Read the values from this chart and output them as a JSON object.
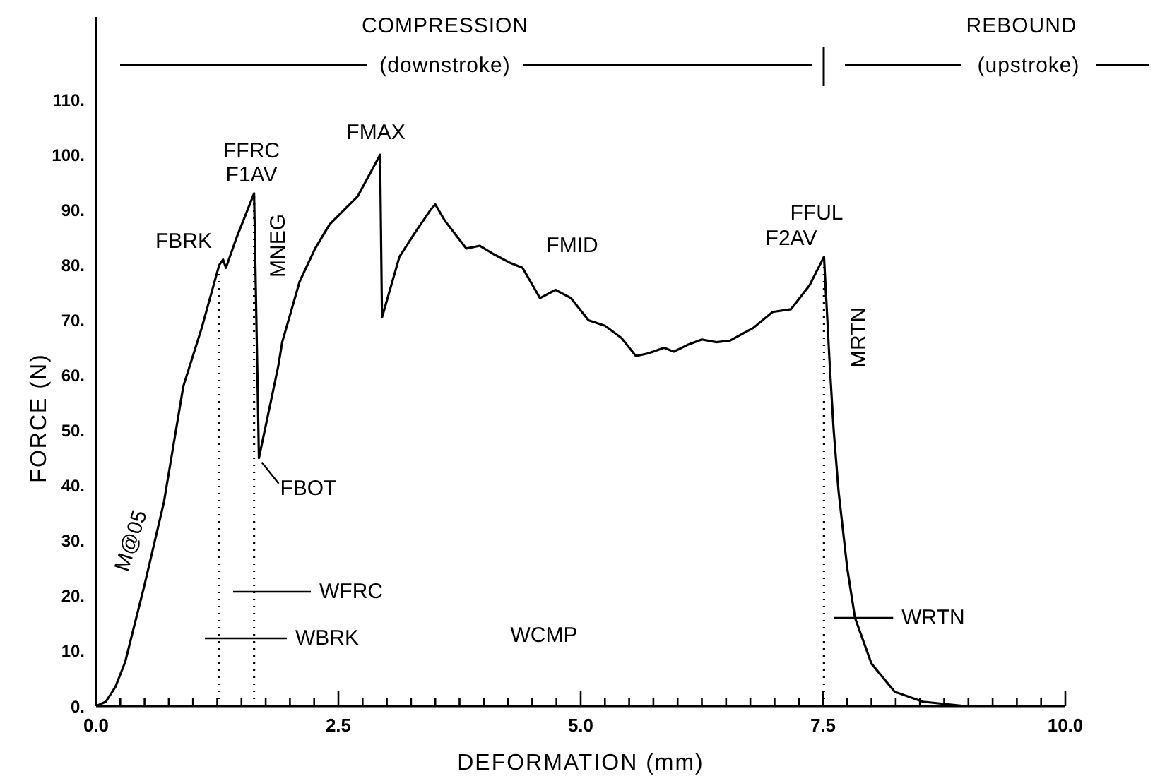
{
  "chart_data": {
    "type": "line",
    "xlabel": "DEFORMATION (mm)",
    "ylabel": "FORCE (N)",
    "x": [
      0,
      0.1,
      0.2,
      0.3,
      0.5,
      0.7,
      0.9,
      1.09,
      1.27,
      1.31,
      1.34,
      1.45,
      1.63,
      1.68,
      1.88,
      1.92,
      2.1,
      2.26,
      2.41,
      2.7,
      2.9,
      2.93,
      2.95,
      3.13,
      3.28,
      3.45,
      3.5,
      3.6,
      3.82,
      3.96,
      4.1,
      4.26,
      4.4,
      4.58,
      4.74,
      4.9,
      5.08,
      5.25,
      5.42,
      5.57,
      5.7,
      5.86,
      5.96,
      6.1,
      6.25,
      6.4,
      6.54,
      6.78,
      6.98,
      7.17,
      7.36,
      7.51,
      7.57,
      7.61,
      7.66,
      7.75,
      7.83,
      8.0,
      8.24,
      8.53,
      8.97,
      9.3
    ],
    "values": [
      0,
      0.8,
      3.5,
      8,
      22,
      37,
      58,
      68.6,
      80,
      81,
      79.5,
      85,
      93,
      45,
      61.7,
      66,
      77,
      83,
      87.4,
      92.5,
      99,
      100,
      70.5,
      81.5,
      85.6,
      90,
      91,
      88,
      83,
      83.5,
      82,
      80.5,
      79.5,
      74,
      75.5,
      74,
      70,
      69,
      66.8,
      63.5,
      64,
      65,
      64.3,
      65.5,
      66.5,
      66,
      66.3,
      68.6,
      71.5,
      72,
      76.3,
      81.5,
      61.7,
      50,
      39,
      25,
      16,
      7.7,
      2.6,
      0.8,
      0,
      0
    ],
    "color": "#000000",
    "marker": "none",
    "line_style": "solid",
    "grid": false,
    "xlim": [
      0,
      10
    ],
    "xticks": [
      {
        "value": 0,
        "label": "0.0"
      },
      {
        "value": 0.25,
        "label": null
      },
      {
        "value": 0.5,
        "label": null
      },
      {
        "value": 0.75,
        "label": null
      },
      {
        "value": 1,
        "label": null
      },
      {
        "value": 1.25,
        "label": null
      },
      {
        "value": 1.5,
        "label": null
      },
      {
        "value": 1.75,
        "label": null
      },
      {
        "value": 2,
        "label": null
      },
      {
        "value": 2.25,
        "label": null
      },
      {
        "value": 2.5,
        "label": "2.5"
      },
      {
        "value": 2.75,
        "label": null
      },
      {
        "value": 3,
        "label": null
      },
      {
        "value": 3.25,
        "label": null
      },
      {
        "value": 3.5,
        "label": null
      },
      {
        "value": 3.75,
        "label": null
      },
      {
        "value": 4,
        "label": null
      },
      {
        "value": 4.25,
        "label": null
      },
      {
        "value": 4.5,
        "label": null
      },
      {
        "value": 4.75,
        "label": null
      },
      {
        "value": 5,
        "label": "5.0"
      },
      {
        "value": 5.25,
        "label": null
      },
      {
        "value": 5.5,
        "label": null
      },
      {
        "value": 5.75,
        "label": null
      },
      {
        "value": 6,
        "label": null
      },
      {
        "value": 6.25,
        "label": null
      },
      {
        "value": 6.5,
        "label": null
      },
      {
        "value": 6.75,
        "label": null
      },
      {
        "value": 7,
        "label": null
      },
      {
        "value": 7.25,
        "label": null
      },
      {
        "value": 7.5,
        "label": "7.5"
      },
      {
        "value": 7.75,
        "label": null
      },
      {
        "value": 8,
        "label": null
      },
      {
        "value": 8.25,
        "label": null
      },
      {
        "value": 8.5,
        "label": null
      },
      {
        "value": 8.75,
        "label": null
      },
      {
        "value": 9,
        "label": null
      },
      {
        "value": 9.25,
        "label": null
      },
      {
        "value": 9.5,
        "label": null
      },
      {
        "value": 9.75,
        "label": null
      },
      {
        "value": 10,
        "label": "10.0"
      }
    ],
    "ylim": [
      0,
      125
    ],
    "yticks": [
      {
        "value": 0,
        "label": "0."
      },
      {
        "value": 10,
        "label": "10."
      },
      {
        "value": 20,
        "label": "20."
      },
      {
        "value": 30,
        "label": "30."
      },
      {
        "value": 40,
        "label": "40."
      },
      {
        "value": 50,
        "label": "50."
      },
      {
        "value": 60,
        "label": "60."
      },
      {
        "value": 70,
        "label": "70."
      },
      {
        "value": 80,
        "label": "80."
      },
      {
        "value": 90,
        "label": "90."
      },
      {
        "value": 100,
        "label": "100."
      },
      {
        "value": 110,
        "label": "110."
      }
    ],
    "ref_lines": [
      {
        "axis": "x",
        "value": 1.27,
        "line_style": "dotted",
        "color": "#000000"
      },
      {
        "axis": "x",
        "value": 1.63,
        "line_style": "dotted",
        "color": "#000000"
      },
      {
        "axis": "x",
        "value": 7.51,
        "line_style": "dotted",
        "color": "#000000"
      }
    ],
    "annotations": [
      "COMPRESSION",
      "(downstroke)",
      "REBOUND",
      "(upstroke)",
      "FFRC",
      "F1AV",
      "FBRK",
      "MNEG",
      "FMAX",
      "FMID",
      "FFUL",
      "F2AV",
      "MRTN",
      {
        "text": "FBOT",
        "x": 1.68,
        "y": 45
      },
      "M@05",
      "WFRC",
      "WBRK",
      "WCMP",
      {
        "text": "WRTN",
        "x": 7.83,
        "y": 16
      }
    ]
  }
}
